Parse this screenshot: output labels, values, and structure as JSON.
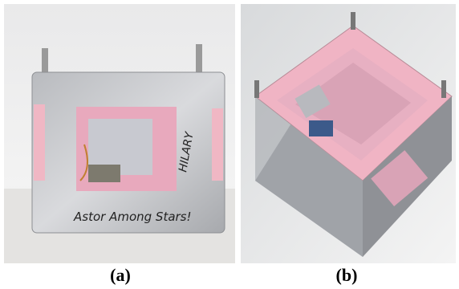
{
  "figure": {
    "panels": [
      {
        "label": "(a)",
        "annotations": [
          "Astor Among Stars!",
          "HILARY"
        ]
      },
      {
        "label": "(b)"
      }
    ]
  }
}
